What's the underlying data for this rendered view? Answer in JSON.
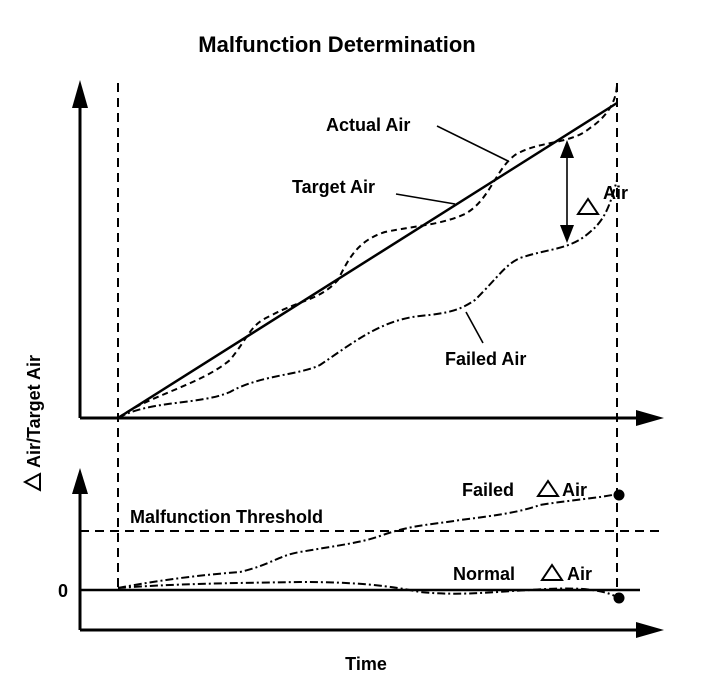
{
  "title": "Malfunction Determination",
  "labels": {
    "actual_air": "Actual Air",
    "target_air": "Target Air",
    "failed_air": "Failed Air",
    "delta_air": "Air",
    "y_axis": "Air/Target Air",
    "x_axis": "Time",
    "threshold": "Malfunction Threshold",
    "failed_delta": "Failed",
    "failed_delta_suffix": "Air",
    "normal_delta": "Normal",
    "normal_delta_suffix": "Air",
    "zero": "0"
  },
  "symbols": {
    "delta": "delta-triangle-icon"
  }
}
